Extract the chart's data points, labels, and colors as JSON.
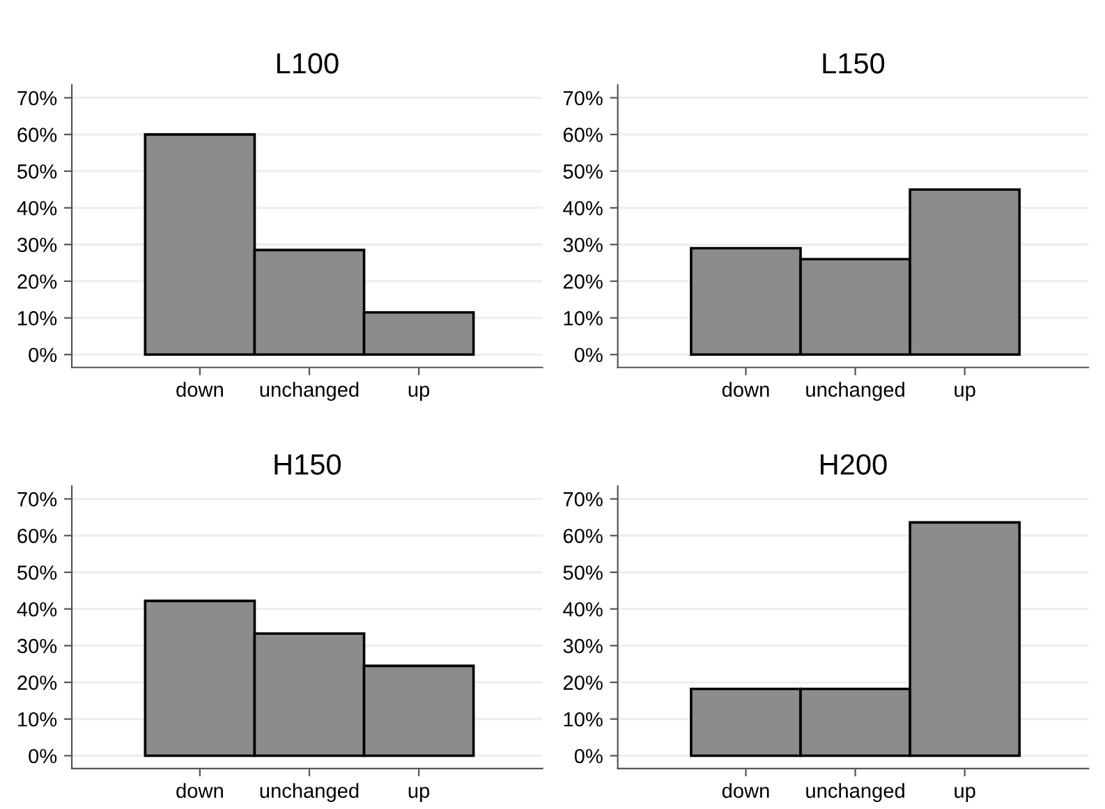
{
  "chart_data": [
    {
      "type": "bar",
      "title": "L100",
      "categories": [
        "down",
        "unchanged",
        "up"
      ],
      "values": [
        60,
        28.5,
        11.5
      ],
      "color": "#8c8c8c",
      "ylim": [
        -3.5,
        73.5
      ],
      "yticks": [
        {
          "value": 0,
          "label": "0%"
        },
        {
          "value": 10,
          "label": "10%"
        },
        {
          "value": 20,
          "label": "20%"
        },
        {
          "value": 30,
          "label": "30%"
        },
        {
          "value": 40,
          "label": "40%"
        },
        {
          "value": 50,
          "label": "50%"
        },
        {
          "value": 60,
          "label": "60%"
        },
        {
          "value": 70,
          "label": "70%"
        }
      ],
      "grid": "y"
    },
    {
      "type": "bar",
      "title": "L150",
      "categories": [
        "down",
        "unchanged",
        "up"
      ],
      "values": [
        29,
        26,
        45
      ],
      "color": "#8c8c8c",
      "ylim": [
        -3.5,
        73.5
      ],
      "yticks": [
        {
          "value": 0,
          "label": "0%"
        },
        {
          "value": 10,
          "label": "10%"
        },
        {
          "value": 20,
          "label": "20%"
        },
        {
          "value": 30,
          "label": "30%"
        },
        {
          "value": 40,
          "label": "40%"
        },
        {
          "value": 50,
          "label": "50%"
        },
        {
          "value": 60,
          "label": "60%"
        },
        {
          "value": 70,
          "label": "70%"
        }
      ],
      "grid": "y"
    },
    {
      "type": "bar",
      "title": "H150",
      "categories": [
        "down",
        "unchanged",
        "up"
      ],
      "values": [
        42.2,
        33.3,
        24.5
      ],
      "color": "#8c8c8c",
      "ylim": [
        -3.5,
        73.5
      ],
      "yticks": [
        {
          "value": 0,
          "label": "0%"
        },
        {
          "value": 10,
          "label": "10%"
        },
        {
          "value": 20,
          "label": "20%"
        },
        {
          "value": 30,
          "label": "30%"
        },
        {
          "value": 40,
          "label": "40%"
        },
        {
          "value": 50,
          "label": "50%"
        },
        {
          "value": 60,
          "label": "60%"
        },
        {
          "value": 70,
          "label": "70%"
        }
      ],
      "grid": "y"
    },
    {
      "type": "bar",
      "title": "H200",
      "categories": [
        "down",
        "unchanged",
        "up"
      ],
      "values": [
        18.2,
        18.2,
        63.6
      ],
      "color": "#8c8c8c",
      "ylim": [
        -3.5,
        73.5
      ],
      "yticks": [
        {
          "value": 0,
          "label": "0%"
        },
        {
          "value": 10,
          "label": "10%"
        },
        {
          "value": 20,
          "label": "20%"
        },
        {
          "value": 30,
          "label": "30%"
        },
        {
          "value": 40,
          "label": "40%"
        },
        {
          "value": 50,
          "label": "50%"
        },
        {
          "value": 60,
          "label": "60%"
        },
        {
          "value": 70,
          "label": "70%"
        }
      ],
      "grid": "y"
    }
  ]
}
